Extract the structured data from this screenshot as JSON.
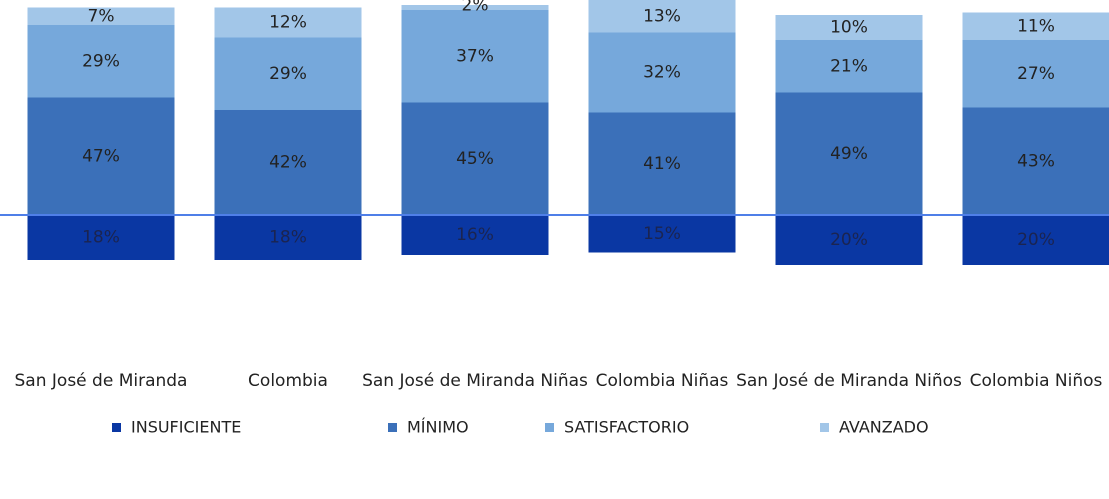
{
  "chart_data": {
    "type": "diverging-stacked-bar",
    "categories": [
      "San José de Miranda",
      "Colombia",
      "San José de Miranda Niñas",
      "Colombia Niñas",
      "San José de Miranda Niños",
      "Colombia Niños"
    ],
    "series": [
      {
        "name": "INSUFICIENTE",
        "color": "#0a37a3",
        "values": [
          18,
          18,
          16,
          15,
          20,
          20
        ],
        "value_labels": [
          "18%",
          "18%",
          "16%",
          "15%",
          "20%",
          "20%"
        ]
      },
      {
        "name": "MÍNIMO",
        "color": "#3b70b9",
        "values": [
          47,
          42,
          45,
          41,
          49,
          43
        ],
        "value_labels": [
          "47%",
          "42%",
          "45%",
          "41%",
          "49%",
          "43%"
        ]
      },
      {
        "name": "SATISFACTORIO",
        "color": "#76a8db",
        "values": [
          29,
          29,
          37,
          32,
          21,
          27
        ],
        "value_labels": [
          "29%",
          "29%",
          "37%",
          "32%",
          "21%",
          "27%"
        ]
      },
      {
        "name": "AVANZADO",
        "color": "#a2c6e8",
        "values": [
          7,
          12,
          2,
          13,
          10,
          11
        ],
        "value_labels": [
          "7%",
          "12%",
          "2%",
          "13%",
          "10%",
          "11%"
        ]
      }
    ],
    "legend": "bottom"
  }
}
